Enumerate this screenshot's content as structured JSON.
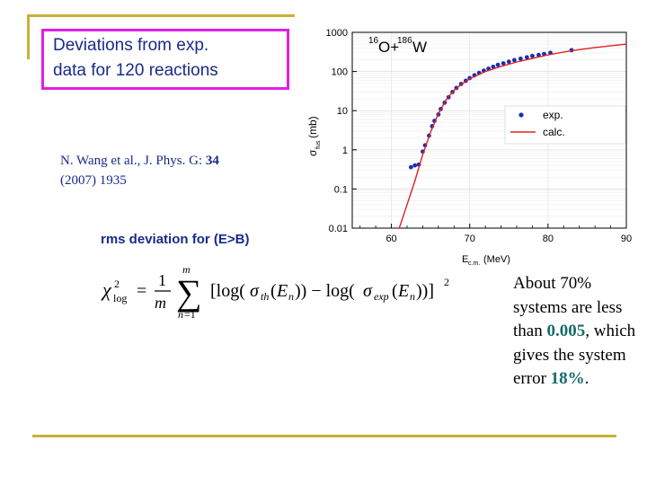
{
  "slide": {
    "title_line1": "Deviations from exp.",
    "title_line2": "data for 120 reactions",
    "reference_line1_prefix": "N. Wang et al., J. Phys. G: ",
    "reference_volume": "34",
    "reference_line2": "(2007) 1935",
    "rms_label": "rms deviation for (E>B)",
    "note_part1": "About 70% systems are less than ",
    "note_value1": "0.005",
    "note_part2": ", which gives the system error ",
    "note_value2": "18%",
    "note_part3": ".",
    "colors": {
      "title_border": "#e020e0",
      "text_blue": "#1a2a8a",
      "rule_gold": "#c9b037",
      "highlight": "#1a6b6b"
    }
  },
  "chart_data": {
    "type": "scatter",
    "annotation": "16O+186W",
    "annotation_parts": {
      "mass1": "16",
      "el1": "O+",
      "mass2": "186",
      "el2": "W"
    },
    "xlabel": "E",
    "xlabel_sub": "c.m.",
    "xlabel_unit": "(MeV)",
    "ylabel": "σ",
    "ylabel_sub": "fus",
    "ylabel_unit": "(mb)",
    "xlim": [
      55,
      90
    ],
    "ylim": [
      0.01,
      1000
    ],
    "log_y": true,
    "x_ticks": [
      60,
      70,
      80,
      90
    ],
    "y_ticks": [
      {
        "value": 0.01,
        "label": "0.01"
      },
      {
        "value": 0.1,
        "label": "0.1"
      },
      {
        "value": 1,
        "label": "1"
      },
      {
        "value": 10,
        "label": "10"
      },
      {
        "value": 100,
        "label": "100"
      },
      {
        "value": 1000,
        "label": "1000"
      }
    ],
    "grid": true,
    "legend_position": "right",
    "series": [
      {
        "name": "exp.",
        "kind": "points",
        "color": "#1a2fb0",
        "x": [
          62.5,
          63.0,
          63.5,
          64.0,
          64.3,
          64.8,
          65.2,
          65.5,
          66.0,
          66.3,
          66.8,
          67.3,
          67.8,
          68.3,
          68.9,
          69.5,
          70.0,
          70.6,
          71.2,
          71.8,
          72.4,
          73.0,
          73.6,
          74.3,
          75.0,
          75.7,
          76.5,
          77.3,
          78.0,
          78.8,
          79.5,
          80.3,
          83.0
        ],
        "y": [
          0.36,
          0.4,
          0.42,
          0.9,
          1.3,
          2.3,
          4.0,
          5.5,
          8.0,
          11,
          16,
          22,
          30,
          38,
          48,
          58,
          68,
          80,
          92,
          105,
          118,
          132,
          148,
          162,
          178,
          195,
          212,
          230,
          250,
          265,
          280,
          300,
          350
        ]
      },
      {
        "name": "calc.",
        "kind": "line",
        "color": "#e02020",
        "x": [
          61.0,
          62.0,
          63.0,
          64.0,
          65.0,
          66.0,
          67.0,
          68.0,
          69.0,
          70.0,
          72.0,
          74.0,
          76.0,
          78.0,
          80.0,
          83.0,
          86.0,
          90.0
        ],
        "y": [
          0.01,
          0.04,
          0.16,
          0.75,
          2.8,
          8.5,
          19,
          33,
          48,
          65,
          100,
          135,
          175,
          215,
          265,
          340,
          410,
          500
        ]
      }
    ]
  }
}
